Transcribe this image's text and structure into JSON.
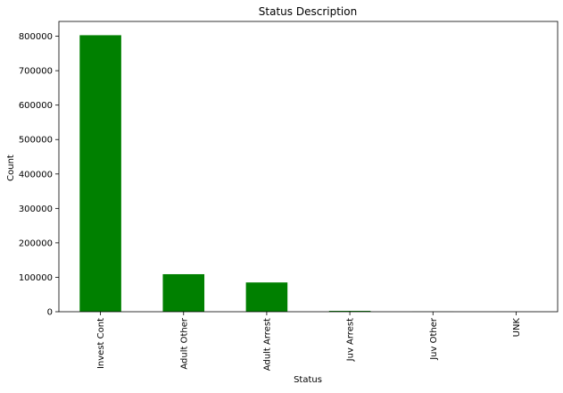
{
  "chart_data": {
    "type": "bar",
    "title": "Status Description",
    "xlabel": "Status",
    "ylabel": "Count",
    "categories": [
      "Invest Cont",
      "Adult Other",
      "Adult Arrest",
      "Juv Arrest",
      "Juv Other",
      "UNK"
    ],
    "values": [
      803000,
      109000,
      85000,
      2500,
      300,
      50
    ],
    "ylim": [
      0,
      843000
    ],
    "yticks": [
      0,
      100000,
      200000,
      300000,
      400000,
      500000,
      600000,
      700000,
      800000
    ],
    "ytick_labels": [
      "0",
      "100000",
      "200000",
      "300000",
      "400000",
      "500000",
      "600000",
      "700000",
      "800000"
    ],
    "bar_color": "#008000",
    "grid": false,
    "legend": "none"
  }
}
